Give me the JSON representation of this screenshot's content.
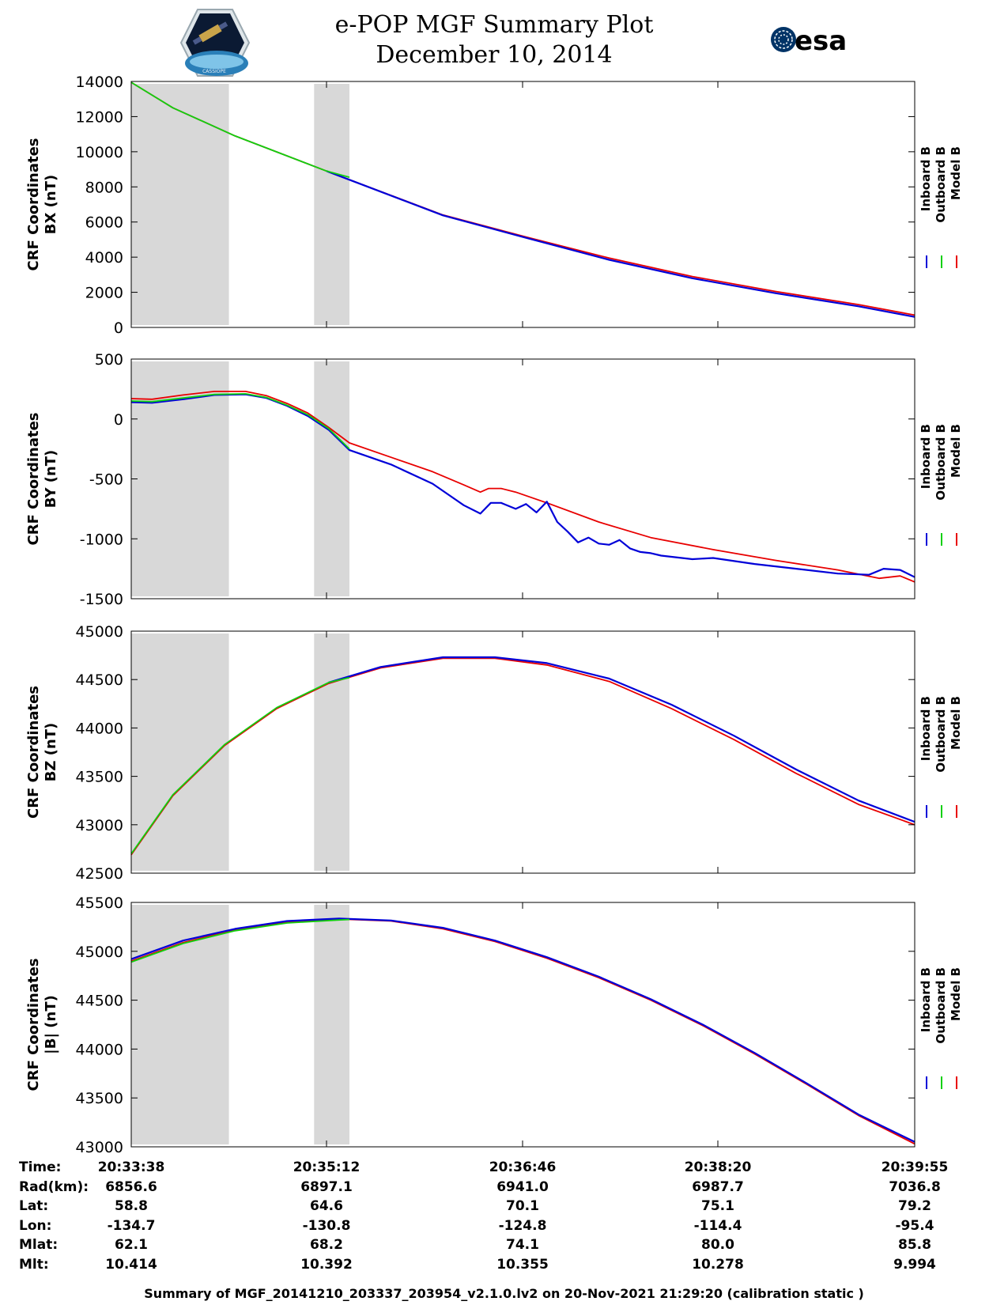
{
  "header": {
    "title": "e-POP MGF Summary Plot",
    "date": "December 10, 2014",
    "logo_left_text": "CASSIOPE",
    "logo_right_text": "esa"
  },
  "legend": {
    "inboard": "Inboard B",
    "outboard": "Outboard B",
    "model": "Model B"
  },
  "colors": {
    "inboard": "#0000d8",
    "outboard": "#10d010",
    "model": "#e80000",
    "shade": "#d8d8d8"
  },
  "chart_data": [
    {
      "type": "line",
      "id": "bx",
      "ylabel": [
        "CRF Coordinates",
        "BX (nT)"
      ],
      "ylim": [
        0,
        14000
      ],
      "yticks": [
        0,
        2000,
        4000,
        6000,
        8000,
        10000,
        12000,
        14000
      ],
      "xlim": [
        0,
        377
      ],
      "shaded": [
        [
          0,
          47
        ],
        [
          88,
          105
        ]
      ],
      "series": [
        {
          "name": "Model B",
          "x": [
            0,
            20,
            50,
            94,
            150,
            190,
            230,
            270,
            310,
            350,
            377
          ],
          "y": [
            13950,
            12500,
            10900,
            8900,
            6400,
            5150,
            3950,
            2900,
            2050,
            1300,
            700
          ]
        },
        {
          "name": "Inboard B",
          "x": [
            94,
            150,
            190,
            230,
            270,
            310,
            350,
            377
          ],
          "y": [
            8900,
            6380,
            5100,
            3850,
            2800,
            1950,
            1200,
            600
          ]
        },
        {
          "name": "Outboard B",
          "x": [
            0,
            20,
            50,
            94,
            105
          ],
          "y": [
            13950,
            12500,
            10900,
            8900,
            8550
          ]
        }
      ]
    },
    {
      "type": "line",
      "id": "by",
      "ylabel": [
        "CRF Coordinates",
        "BY (nT)"
      ],
      "ylim": [
        -1500,
        500
      ],
      "yticks": [
        -1500,
        -1000,
        -500,
        0,
        500
      ],
      "yticklabels": [
        "-1500",
        "-1000",
        "-500",
        "0",
        "500"
      ],
      "xlim": [
        0,
        377
      ],
      "shaded": [
        [
          0,
          47
        ],
        [
          88,
          105
        ]
      ],
      "series": [
        {
          "name": "Model B",
          "x": [
            0,
            10,
            25,
            40,
            55,
            65,
            75,
            85,
            95,
            105,
            125,
            145,
            160,
            168,
            172,
            178,
            185,
            200,
            225,
            250,
            280,
            310,
            340,
            360,
            370,
            377
          ],
          "y": [
            170,
            165,
            200,
            230,
            230,
            195,
            130,
            50,
            -70,
            -200,
            -320,
            -440,
            -550,
            -610,
            -580,
            -580,
            -610,
            -700,
            -860,
            -990,
            -1090,
            -1180,
            -1260,
            -1330,
            -1310,
            -1360
          ]
        },
        {
          "name": "Inboard B",
          "x": [
            0,
            10,
            25,
            40,
            55,
            65,
            75,
            85,
            95,
            105,
            125,
            145,
            160,
            168,
            173,
            178,
            185,
            190,
            195,
            200,
            205,
            210,
            215,
            220,
            225,
            230,
            235,
            240,
            245,
            250,
            255,
            260,
            270,
            280,
            300,
            320,
            340,
            355,
            362,
            370,
            377
          ],
          "y": [
            140,
            135,
            165,
            200,
            205,
            175,
            110,
            25,
            -90,
            -260,
            -380,
            -540,
            -720,
            -790,
            -700,
            -700,
            -750,
            -710,
            -780,
            -690,
            -860,
            -940,
            -1030,
            -990,
            -1040,
            -1050,
            -1010,
            -1080,
            -1110,
            -1120,
            -1140,
            -1150,
            -1170,
            -1160,
            -1210,
            -1250,
            -1290,
            -1300,
            -1250,
            -1260,
            -1320
          ]
        },
        {
          "name": "Outboard B",
          "x": [
            0,
            10,
            25,
            40,
            55,
            65,
            75,
            85,
            95,
            105
          ],
          "y": [
            150,
            145,
            175,
            205,
            210,
            180,
            115,
            35,
            -80,
            -250
          ]
        }
      ]
    },
    {
      "type": "line",
      "id": "bz",
      "ylabel": [
        "CRF Coordinates",
        "BZ (nT)"
      ],
      "ylim": [
        42500,
        45000
      ],
      "yticks": [
        42500,
        43000,
        43500,
        44000,
        44500,
        45000
      ],
      "xlim": [
        0,
        377
      ],
      "shaded": [
        [
          0,
          47
        ],
        [
          88,
          105
        ]
      ],
      "series": [
        {
          "name": "Model B",
          "x": [
            0,
            20,
            45,
            70,
            95,
            120,
            150,
            175,
            200,
            230,
            260,
            290,
            320,
            350,
            377
          ],
          "y": [
            42690,
            43300,
            43820,
            44200,
            44460,
            44620,
            44720,
            44720,
            44650,
            44480,
            44200,
            43880,
            43530,
            43210,
            43000
          ]
        },
        {
          "name": "Inboard B",
          "x": [
            95,
            120,
            150,
            175,
            200,
            230,
            260,
            290,
            320,
            350,
            377
          ],
          "y": [
            44470,
            44630,
            44730,
            44730,
            44670,
            44510,
            44240,
            43920,
            43570,
            43250,
            43030
          ]
        },
        {
          "name": "Outboard B",
          "x": [
            0,
            20,
            45,
            70,
            95,
            105
          ],
          "y": [
            42700,
            43310,
            43830,
            44210,
            44470,
            44520
          ]
        }
      ]
    },
    {
      "type": "line",
      "id": "bmag",
      "ylabel": [
        "CRF Coordinates",
        "|B| (nT)"
      ],
      "ylim": [
        43000,
        45500
      ],
      "yticks": [
        43000,
        43500,
        44000,
        44500,
        45000,
        45500
      ],
      "xlim": [
        0,
        377
      ],
      "shaded": [
        [
          0,
          47
        ],
        [
          88,
          105
        ]
      ],
      "series": [
        {
          "name": "Model B",
          "x": [
            0,
            25,
            50,
            75,
            100,
            125,
            150,
            175,
            200,
            225,
            250,
            275,
            300,
            325,
            350,
            377
          ],
          "y": [
            44900,
            45090,
            45220,
            45300,
            45330,
            45310,
            45230,
            45100,
            44930,
            44730,
            44500,
            44240,
            43950,
            43640,
            43320,
            43030
          ]
        },
        {
          "name": "Inboard B",
          "x": [
            0,
            25,
            50,
            75,
            100,
            125,
            150,
            175,
            200,
            225,
            250,
            275,
            300,
            325,
            350,
            377
          ],
          "y": [
            44920,
            45110,
            45230,
            45310,
            45335,
            45315,
            45240,
            45110,
            44940,
            44740,
            44510,
            44250,
            43960,
            43650,
            43330,
            43050
          ]
        },
        {
          "name": "Outboard B",
          "x": [
            0,
            25,
            50,
            75,
            100,
            105
          ],
          "y": [
            44890,
            45080,
            45210,
            45290,
            45320,
            45325
          ]
        }
      ]
    }
  ],
  "info": {
    "labels": [
      "Time:",
      "Rad(km):",
      "Lat:",
      "Lon:",
      "Mlat:",
      "Mlt:"
    ],
    "columns": [
      [
        "20:33:38",
        "6856.6",
        "58.8",
        "-134.7",
        "62.1",
        "10.414"
      ],
      [
        "20:35:12",
        "6897.1",
        "64.6",
        "-130.8",
        "68.2",
        "10.392"
      ],
      [
        "20:36:46",
        "6941.0",
        "70.1",
        "-124.8",
        "74.1",
        "10.355"
      ],
      [
        "20:38:20",
        "6987.7",
        "75.1",
        "-114.4",
        "80.0",
        "10.278"
      ],
      [
        "20:39:55",
        "7036.8",
        "79.2",
        "-95.4",
        "85.8",
        "9.994"
      ]
    ]
  },
  "footer": "Summary of MGF_20141210_203337_203954_v2.1.0.lv2 on 20-Nov-2021 21:29:20 (calibration static )"
}
